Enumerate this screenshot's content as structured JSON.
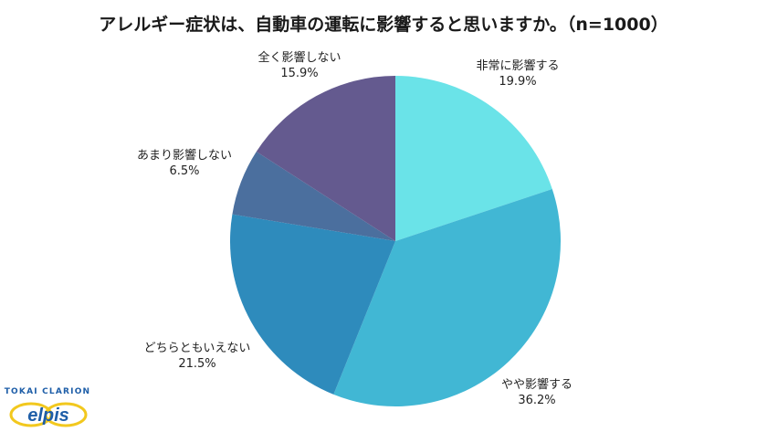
{
  "chart_data": {
    "type": "pie",
    "title": "アレルギー症状は、自動車の運転に影響すると思いますか。（n=1000）",
    "start_angle": "12 o'clock",
    "direction": "clockwise",
    "slices": [
      {
        "label": "非常に影響する",
        "value": 19.9,
        "display": "19.9%",
        "color": "#6ae3e8"
      },
      {
        "label": "やや影響する",
        "value": 36.2,
        "display": "36.2%",
        "color": "#41b7d4"
      },
      {
        "label": "どちらともいえない",
        "value": 21.5,
        "display": "21.5%",
        "color": "#2e8bbc"
      },
      {
        "label": "あまり影響しない",
        "value": 6.5,
        "display": "6.5%",
        "color": "#4b6f9e"
      },
      {
        "label": "全く影響しない",
        "value": 15.9,
        "display": "15.9%",
        "color": "#645a8f"
      }
    ],
    "legend": "none (labels outside slices)"
  },
  "logo": {
    "company": "TOKAI CLARION",
    "brand": "elpis"
  }
}
